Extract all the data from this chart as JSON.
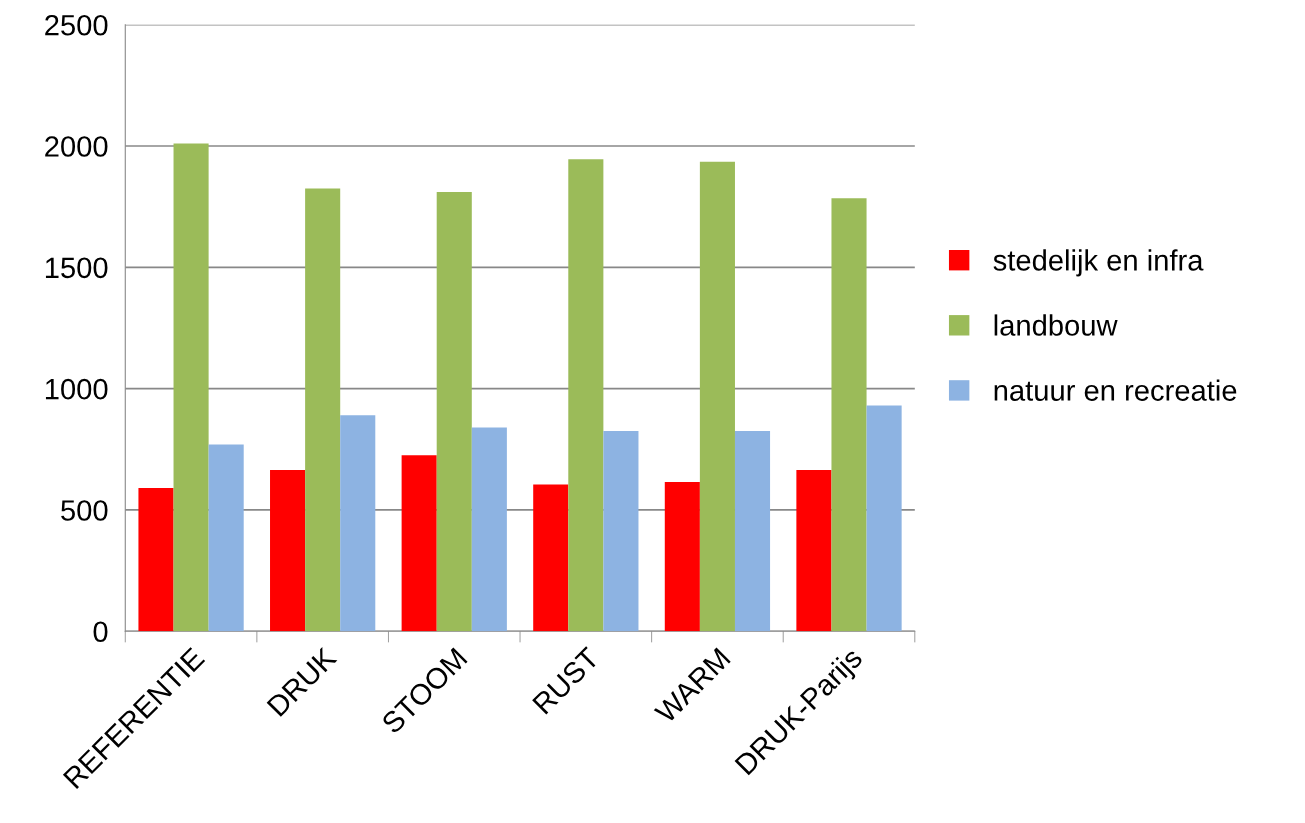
{
  "chart_data": {
    "type": "bar",
    "categories": [
      "REFERENTIE",
      "DRUK",
      "STOOM",
      "RUST",
      "WARM",
      "DRUK-Parijs"
    ],
    "series": [
      {
        "name": "stedelijk en infra",
        "color": "#ff0000",
        "values": [
          590,
          665,
          725,
          605,
          615,
          665
        ]
      },
      {
        "name": "landbouw",
        "color": "#9bbb59",
        "values": [
          2010,
          1825,
          1810,
          1945,
          1935,
          1785
        ]
      },
      {
        "name": "natuur en recreatie",
        "color": "#8db3e2",
        "values": [
          770,
          890,
          840,
          825,
          825,
          930
        ]
      }
    ],
    "ylim": [
      0,
      2500
    ],
    "yticks": [
      0,
      500,
      1000,
      1500,
      2000,
      2500
    ],
    "grid": "y",
    "legend": "right"
  }
}
